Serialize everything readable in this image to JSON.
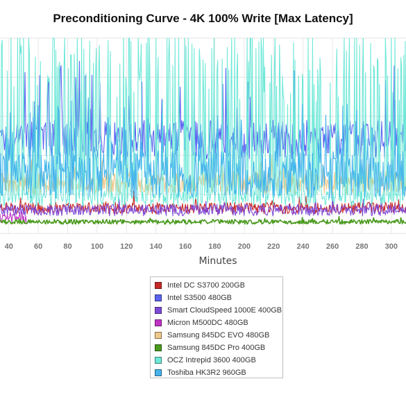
{
  "chart_data": {
    "type": "line",
    "title": "Preconditioning Curve - 4K 100% Write [Max Latency]",
    "xlabel": "Minutes",
    "ylabel": "",
    "x_ticks": [
      40,
      60,
      80,
      100,
      120,
      140,
      160,
      180,
      200,
      220,
      240,
      260,
      280,
      300
    ],
    "xlim": [
      34,
      310
    ],
    "ylim": [
      0,
      100
    ],
    "grid": true,
    "legend_position": "bottom",
    "series": [
      {
        "name": "Intel DC S3700 200GB",
        "color": "#c62828",
        "base": 13,
        "jitter": 3,
        "spike_rate": 0.03,
        "spike_height": 6,
        "x_start": 34,
        "x_end": 310
      },
      {
        "name": "Intel S3500 480GB",
        "color": "#5a64f0",
        "base": 48,
        "jitter": 10,
        "spike_rate": 0.06,
        "spike_height": 35,
        "x_start": 34,
        "x_end": 310
      },
      {
        "name": "Smart CloudSpeed 1000E 400GB",
        "color": "#7e4bd8",
        "base": 12,
        "jitter": 3,
        "spike_rate": 0.02,
        "spike_height": 5,
        "x_start": 34,
        "x_end": 310
      },
      {
        "name": "Micron M500DC 480GB",
        "color": "#c033c4",
        "base": 8,
        "jitter": 3,
        "spike_rate": 0.02,
        "spike_height": 4,
        "x_start": 34,
        "x_end": 52
      },
      {
        "name": "Samsung 845DC EVO 480GB",
        "color": "#efc88c",
        "base": 26,
        "jitter": 6,
        "spike_rate": 0.03,
        "spike_height": 10,
        "x_start": 34,
        "x_end": 310
      },
      {
        "name": "Samsung 845DC Pro 400GB",
        "color": "#4a9a1e",
        "base": 6,
        "jitter": 1.2,
        "spike_rate": 0.02,
        "spike_height": 2,
        "x_start": 34,
        "x_end": 310
      },
      {
        "name": "OCZ Intrepid 3600 400GB",
        "color": "#6ee8d8",
        "base": 18,
        "jitter": 4,
        "spike_rate": 0.33,
        "spike_height": 95,
        "x_start": 34,
        "x_end": 310
      },
      {
        "name": "Toshiba HK3R2 960GB",
        "color": "#45b4ec",
        "base": 30,
        "jitter": 12,
        "spike_rate": 0.12,
        "spike_height": 30,
        "x_start": 34,
        "x_end": 310
      }
    ]
  }
}
